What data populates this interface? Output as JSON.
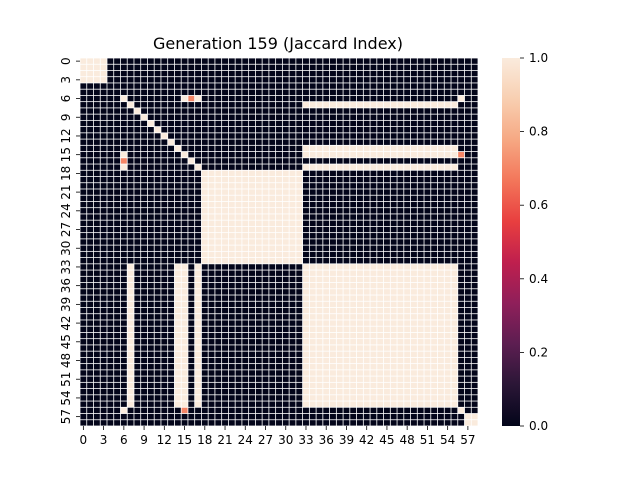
{
  "chart_data": {
    "type": "heatmap",
    "title": "Generation 159 (Jaccard Index)",
    "xlabel": "",
    "ylabel": "",
    "n": 59,
    "tick_step": 3,
    "tick_labels": [
      "0",
      "3",
      "6",
      "9",
      "12",
      "15",
      "18",
      "21",
      "24",
      "27",
      "30",
      "33",
      "36",
      "39",
      "42",
      "45",
      "48",
      "51",
      "54",
      "57"
    ],
    "colorbar": {
      "min": 0.0,
      "max": 1.0,
      "ticks": [
        "0.0",
        "0.2",
        "0.4",
        "0.6",
        "0.8",
        "1.0"
      ],
      "colors": [
        "#03051a",
        "#2a1636",
        "#5c1e51",
        "#8f1f5a",
        "#bf1f4e",
        "#e83f3f",
        "#f3765a",
        "#f6a883",
        "#f8cfb1",
        "#faebdd"
      ]
    },
    "blocks": [
      {
        "rows": [
          0,
          3
        ],
        "cols": [
          0,
          3
        ],
        "value": 1.0
      },
      {
        "rows": [
          18,
          32
        ],
        "cols": [
          18,
          32
        ],
        "value": 1.0
      },
      {
        "rows": [
          33,
          55
        ],
        "cols": [
          33,
          55
        ],
        "value": 1.0
      },
      {
        "rows": [
          57,
          58
        ],
        "cols": [
          57,
          58
        ],
        "value": 1.0
      }
    ],
    "cells": [
      {
        "r": 7,
        "c": 7,
        "value": 1.0
      },
      {
        "r": 8,
        "c": 8,
        "value": 1.0
      },
      {
        "r": 9,
        "c": 9,
        "value": 1.0
      },
      {
        "r": 10,
        "c": 10,
        "value": 1.0
      },
      {
        "r": 11,
        "c": 11,
        "value": 1.0
      },
      {
        "r": 12,
        "c": 12,
        "value": 1.0
      },
      {
        "r": 13,
        "c": 13,
        "value": 1.0
      },
      {
        "r": 14,
        "c": 14,
        "value": 1.0
      },
      {
        "r": 15,
        "c": 15,
        "value": 1.0
      },
      {
        "r": 16,
        "c": 16,
        "value": 1.0
      },
      {
        "r": 17,
        "c": 17,
        "value": 1.0
      },
      {
        "r": 6,
        "c": 6,
        "value": 1.0
      },
      {
        "r": 56,
        "c": 56,
        "value": 1.0
      },
      {
        "r": 6,
        "c": 15,
        "value": 1.0
      },
      {
        "r": 6,
        "c": 17,
        "value": 1.0
      },
      {
        "r": 15,
        "c": 6,
        "value": 1.0
      },
      {
        "r": 17,
        "c": 6,
        "value": 1.0
      },
      {
        "r": 6,
        "c": 56,
        "value": 1.0
      },
      {
        "r": 56,
        "c": 6,
        "value": 1.0
      },
      {
        "r": 6,
        "c": 16,
        "value": 0.7
      },
      {
        "r": 16,
        "c": 6,
        "value": 0.7
      },
      {
        "r": 15,
        "c": 56,
        "value": 0.7
      },
      {
        "r": 56,
        "c": 15,
        "value": 0.7
      }
    ],
    "row_strips": [
      {
        "row": 7,
        "cols": [
          33,
          55
        ],
        "value": 1.0
      },
      {
        "row": 14,
        "cols": [
          33,
          55
        ],
        "value": 1.0
      },
      {
        "row": 15,
        "cols": [
          33,
          55
        ],
        "value": 1.0
      },
      {
        "row": 17,
        "cols": [
          33,
          55
        ],
        "value": 1.0
      }
    ],
    "col_strips": [
      {
        "col": 7,
        "rows": [
          33,
          55
        ],
        "value": 1.0
      },
      {
        "col": 14,
        "rows": [
          33,
          55
        ],
        "value": 1.0
      },
      {
        "col": 15,
        "rows": [
          33,
          55
        ],
        "value": 1.0
      },
      {
        "col": 17,
        "rows": [
          33,
          55
        ],
        "value": 1.0
      }
    ],
    "background_value": 0.0,
    "grid_lines": true,
    "legend_placement": "right colorbar"
  }
}
